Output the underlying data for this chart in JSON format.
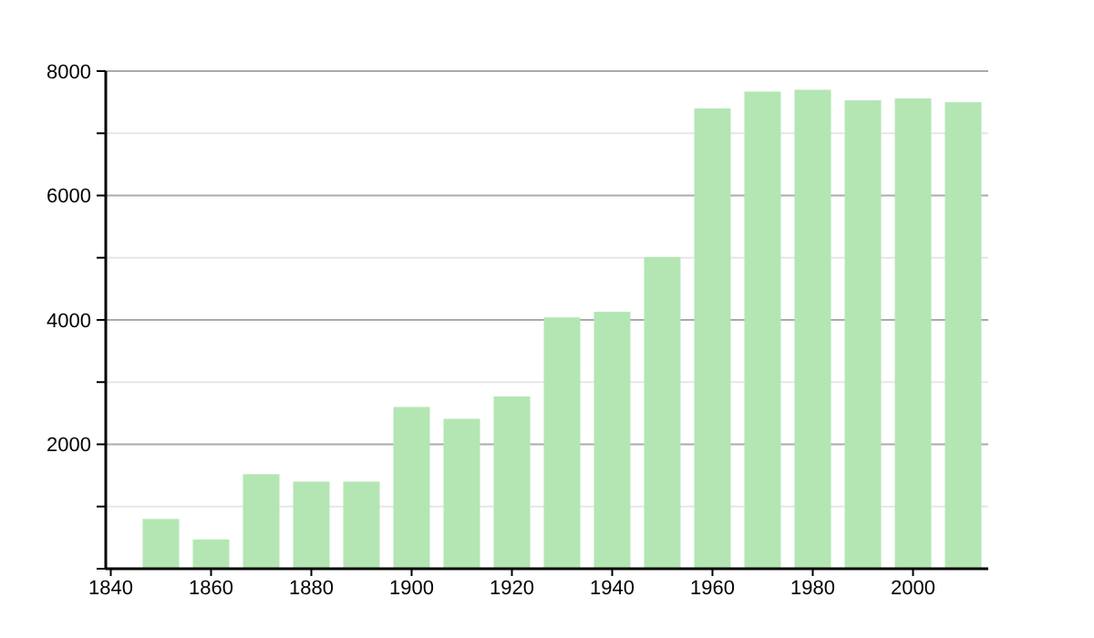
{
  "chart_data": {
    "type": "bar",
    "x": [
      1850,
      1860,
      1870,
      1880,
      1890,
      1900,
      1910,
      1920,
      1930,
      1940,
      1950,
      1960,
      1970,
      1980,
      1990,
      2000,
      2010
    ],
    "values": [
      800,
      470,
      1520,
      1400,
      1400,
      2600,
      2410,
      2770,
      4040,
      4130,
      5010,
      7400,
      7670,
      7700,
      7530,
      7560,
      7500
    ],
    "color": "#b3e6b3",
    "xlim": [
      1839,
      2015
    ],
    "xticks": [
      1840,
      1860,
      1880,
      1900,
      1920,
      1940,
      1960,
      1980,
      2000
    ],
    "ylim": [
      0,
      8000
    ],
    "yticks": [
      {
        "value": 0,
        "label": null
      },
      {
        "value": 1000,
        "label": null
      },
      2000,
      {
        "value": 3000,
        "label": null
      },
      4000,
      {
        "value": 5000,
        "label": null
      },
      6000,
      {
        "value": 7000,
        "label": null
      },
      8000
    ],
    "grid": "y"
  }
}
